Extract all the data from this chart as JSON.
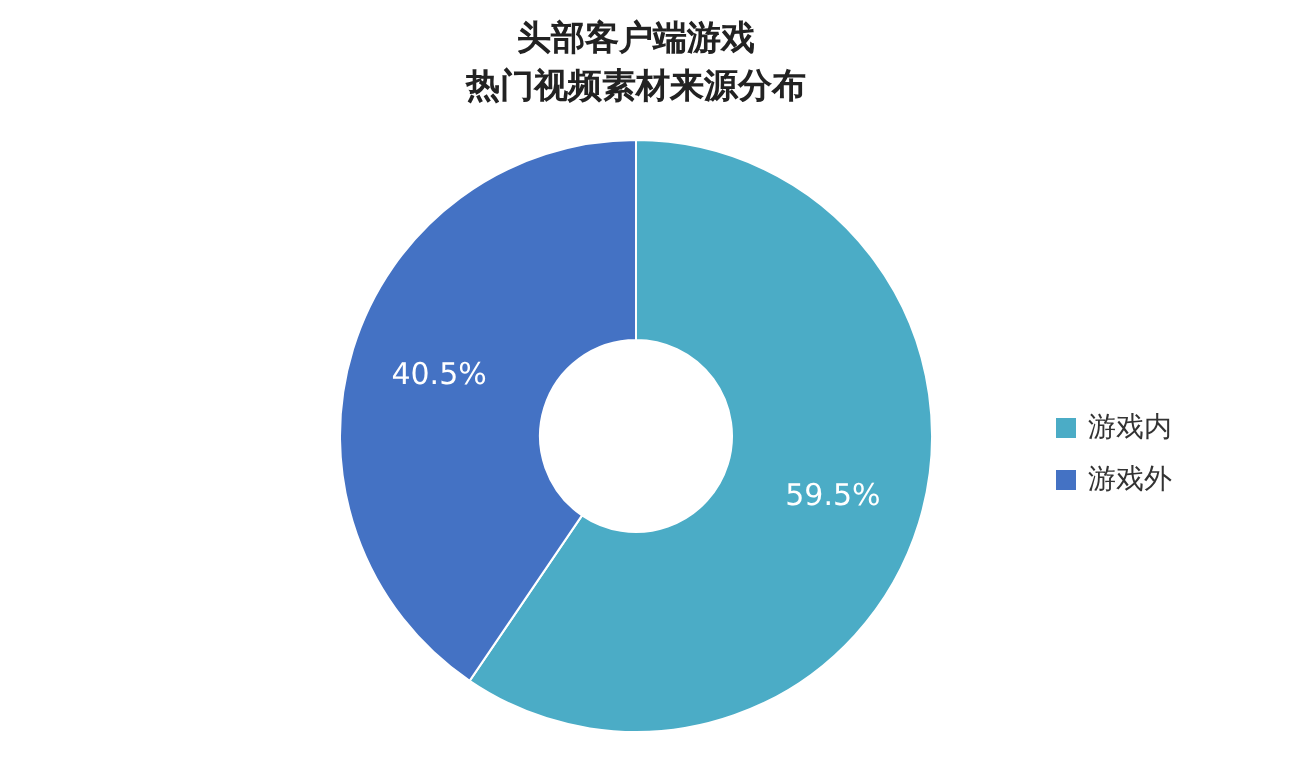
{
  "chart_data": {
    "type": "donut",
    "title": "头部客户端游戏",
    "subtitle": "热门视频素材来源分布",
    "categories": [
      "游戏内",
      "游戏外"
    ],
    "values": [
      59.5,
      40.5
    ],
    "value_labels": [
      "59.5%",
      "40.5%"
    ],
    "colors": [
      "#4bacc6",
      "#4472c4"
    ],
    "legend": "right"
  }
}
